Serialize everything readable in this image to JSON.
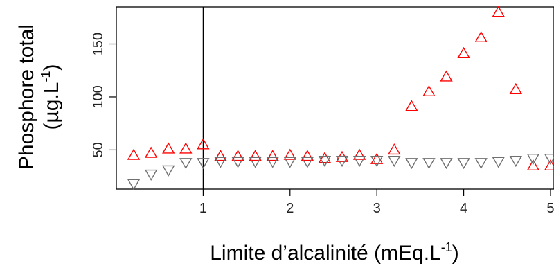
{
  "chart_data": {
    "type": "scatter",
    "xlabel": "Limite d’alcalinité (mEq.L",
    "xlabel_sup": "-1",
    "xlabel_tail": ")",
    "ylabel_line1": "Phosphore total",
    "ylabel_line2": "(µg.L",
    "ylabel_sup": "-1",
    "ylabel_tail": ")",
    "xlim": [
      0.0,
      5.04
    ],
    "ylim": [
      13,
      185
    ],
    "x_ticks": [
      1,
      2,
      3,
      4,
      5
    ],
    "x_tick_labels": [
      "1",
      "2",
      "3",
      "4",
      "5"
    ],
    "y_ticks": [
      50,
      100,
      150
    ],
    "y_tick_labels": [
      "50",
      "100",
      "150"
    ],
    "vline": 1,
    "grid": false,
    "series": [
      {
        "marker": "triangle-up",
        "color": "#ff0000",
        "x": [
          0.2,
          0.4,
          0.6,
          0.8,
          1.0,
          1.2,
          1.4,
          1.6,
          1.8,
          2.0,
          2.2,
          2.4,
          2.6,
          2.8,
          3.0,
          3.2,
          3.4,
          3.6,
          3.8,
          4.0,
          4.2,
          4.4,
          4.6,
          4.8,
          5.0
        ],
        "y": [
          45,
          47,
          51,
          51,
          55,
          44,
          44,
          44,
          44,
          45,
          44,
          42,
          43,
          45,
          41,
          50,
          91,
          105,
          119,
          141,
          156,
          180,
          107,
          35,
          35
        ]
      },
      {
        "marker": "triangle-down",
        "color": "#707070",
        "x": [
          0.2,
          0.4,
          0.6,
          0.8,
          1.0,
          1.2,
          1.4,
          1.6,
          1.8,
          2.0,
          2.2,
          2.4,
          2.6,
          2.8,
          3.0,
          3.2,
          3.4,
          3.6,
          3.8,
          4.0,
          4.2,
          4.4,
          4.6,
          4.8,
          5.0
        ],
        "y": [
          18,
          27,
          31,
          38,
          38,
          39,
          39,
          39,
          39,
          39,
          39,
          40,
          40,
          40,
          40,
          40,
          38,
          38,
          38,
          38,
          38,
          39,
          40,
          42,
          42
        ]
      }
    ]
  }
}
